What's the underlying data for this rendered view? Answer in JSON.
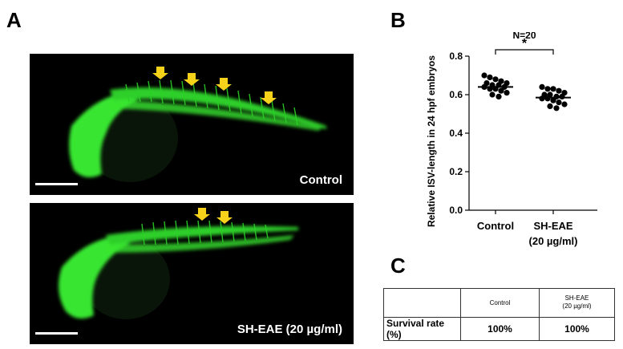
{
  "panels": {
    "a_letter": "A",
    "b_letter": "B",
    "c_letter": "C"
  },
  "micrographs": [
    {
      "label": "Control",
      "arrow_count": 4
    },
    {
      "label": "SH-EAE (20 µg/ml)",
      "arrow_count": 2
    }
  ],
  "colors": {
    "vessel": "#39e630",
    "arrow": "#f7d21b",
    "background": "#000000"
  },
  "chart_data": {
    "type": "scatter",
    "ylabel": "Relative ISV-length in 24 hpf embryos",
    "ylim": [
      0.0,
      0.8
    ],
    "yticks": [
      "0.0",
      "0.2",
      "0.4",
      "0.6",
      "0.8"
    ],
    "yticks_values": [
      0.0,
      0.2,
      0.4,
      0.6,
      0.8
    ],
    "categories": [
      "Control",
      "SH-EAE"
    ],
    "category_sublabels": [
      "",
      "(20 µg/ml)"
    ],
    "annotation_n": "N=20",
    "significance": "*",
    "means": [
      0.64,
      0.585
    ],
    "series": [
      {
        "values": [
          0.7,
          0.69,
          0.68,
          0.67,
          0.66,
          0.66,
          0.65,
          0.65,
          0.64,
          0.64,
          0.63,
          0.63,
          0.62,
          0.61,
          0.6,
          0.59
        ]
      },
      {
        "values": [
          0.64,
          0.63,
          0.63,
          0.62,
          0.61,
          0.6,
          0.6,
          0.59,
          0.59,
          0.58,
          0.58,
          0.57,
          0.56,
          0.55,
          0.54,
          0.53
        ]
      }
    ]
  },
  "table": {
    "header": [
      "",
      "Control",
      "SH-EAE",
      "(20 µg/ml)"
    ],
    "row_label": "Survival rate (%)",
    "values": [
      "100%",
      "100%"
    ]
  }
}
